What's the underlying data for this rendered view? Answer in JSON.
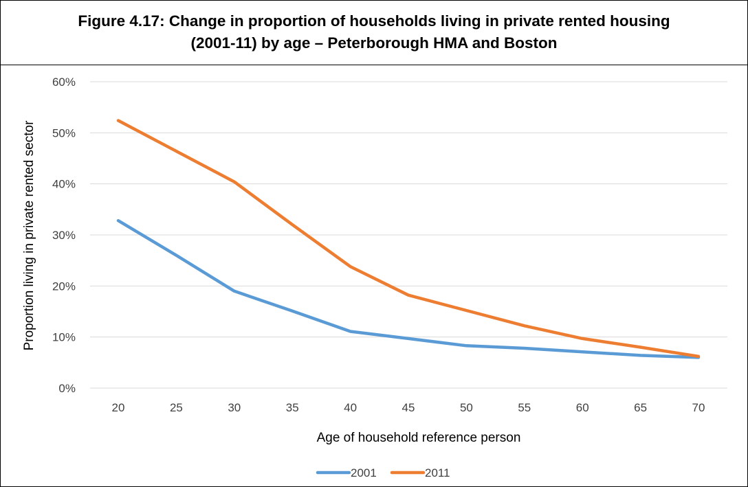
{
  "title": {
    "line1": "Figure 4.17: Change in proportion of households living in private rented housing",
    "line2": "(2001-11) by age – Peterborough HMA and Boston"
  },
  "chart_data": {
    "type": "line",
    "title": "Figure 4.17: Change in proportion of households living in private rented housing (2001-11) by age – Peterborough HMA and Boston",
    "xlabel": "Age of household reference person",
    "ylabel": "Proportion living in private rented sector",
    "x": [
      20,
      25,
      30,
      35,
      40,
      45,
      50,
      55,
      60,
      65,
      70
    ],
    "x_tick_labels": [
      "20",
      "25",
      "30",
      "35",
      "40",
      "45",
      "50",
      "55",
      "60",
      "65",
      "70"
    ],
    "y_tick_labels": [
      "0%",
      "10%",
      "20%",
      "30%",
      "40%",
      "50%",
      "60%"
    ],
    "ylim": [
      0,
      60
    ],
    "y_unit": "%",
    "grid": "horizontal",
    "legend_position": "bottom",
    "series": [
      {
        "name": "2001",
        "color": "#5B9BD5",
        "values": [
          32.8,
          26.0,
          19.0,
          15.1,
          11.1,
          9.7,
          8.3,
          7.8,
          7.1,
          6.4,
          6.0
        ]
      },
      {
        "name": "2011",
        "color": "#ED7D31",
        "values": [
          52.4,
          46.4,
          40.4,
          32.0,
          23.8,
          18.2,
          15.2,
          12.2,
          9.7,
          8.0,
          6.2
        ]
      }
    ]
  }
}
